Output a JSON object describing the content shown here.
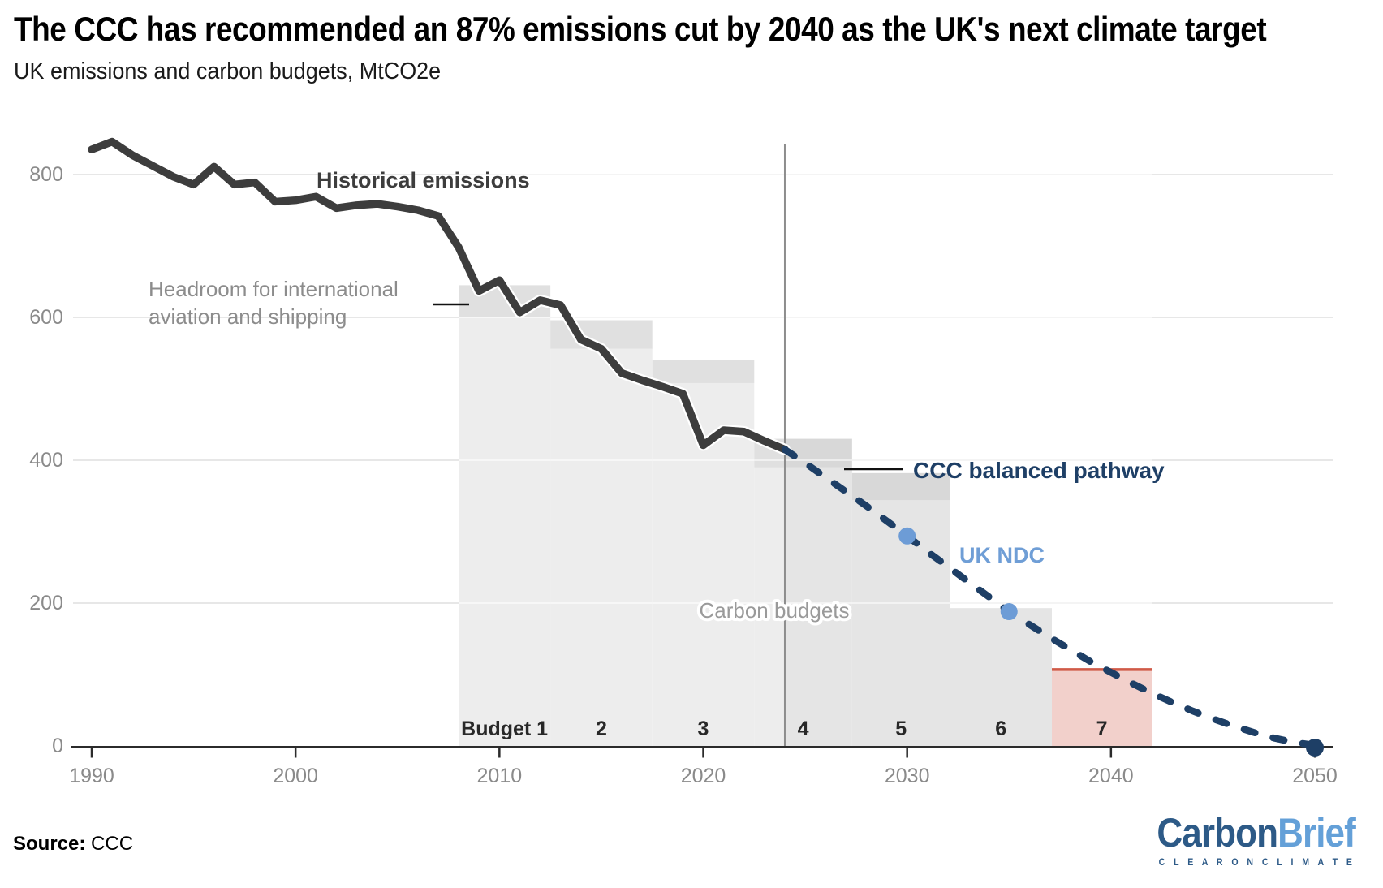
{
  "header": {
    "title": "The CCC has recommended an 87% emissions cut by 2040 as the UK's next climate target",
    "subtitle": "UK emissions and carbon budgets, MtCO2e"
  },
  "footer": {
    "source_label": "Source:",
    "source_value": "CCC",
    "logo": {
      "part1": "Carbon",
      "part2": "Brief",
      "tagline": "C L E A R   O N   C L I M A T E"
    }
  },
  "chart_data": {
    "type": "line",
    "title": "UK emissions and carbon budgets",
    "unit": "MtCO2e",
    "xlabel": "",
    "ylabel": "MtCO2e",
    "x_ticks": [
      1990,
      2000,
      2010,
      2020,
      2030,
      2040,
      2050
    ],
    "y_ticks": [
      0,
      200,
      400,
      600,
      800
    ],
    "x_domain": [
      1990,
      2050
    ],
    "y_domain": [
      0,
      860
    ],
    "grid": "horizontal",
    "now_line_year": 2024,
    "historical": {
      "label": "Historical emissions",
      "years": [
        1990,
        1991,
        1992,
        1993,
        1994,
        1995,
        1996,
        1997,
        1998,
        1999,
        2000,
        2001,
        2002,
        2003,
        2004,
        2005,
        2006,
        2007,
        2008,
        2009,
        2010,
        2011,
        2012,
        2013,
        2014,
        2015,
        2016,
        2017,
        2018,
        2019,
        2020,
        2021,
        2022,
        2023,
        2024
      ],
      "values": [
        835,
        846,
        827,
        812,
        797,
        786,
        811,
        786,
        789,
        762,
        764,
        769,
        753,
        757,
        759,
        755,
        750,
        742,
        698,
        637,
        652,
        607,
        624,
        617,
        569,
        556,
        522,
        512,
        503,
        493,
        421,
        442,
        440,
        427,
        415
      ]
    },
    "pathway": {
      "label": "CCC balanced pathway",
      "points": [
        [
          2024,
          415
        ],
        [
          2025,
          396
        ],
        [
          2026,
          376
        ],
        [
          2027,
          356
        ],
        [
          2028,
          336
        ],
        [
          2029,
          315
        ],
        [
          2030,
          294
        ],
        [
          2031,
          272
        ],
        [
          2032,
          251
        ],
        [
          2033,
          230
        ],
        [
          2034,
          209
        ],
        [
          2035,
          188
        ],
        [
          2036,
          170
        ],
        [
          2037,
          152
        ],
        [
          2038,
          135
        ],
        [
          2039,
          118
        ],
        [
          2040,
          103
        ],
        [
          2041,
          88
        ],
        [
          2042,
          74
        ],
        [
          2043,
          61
        ],
        [
          2044,
          49
        ],
        [
          2045,
          38
        ],
        [
          2046,
          28
        ],
        [
          2047,
          19
        ],
        [
          2048,
          11
        ],
        [
          2049,
          5
        ],
        [
          2050,
          1
        ]
      ]
    },
    "ndc": {
      "label": "UK NDC",
      "points": [
        [
          2030,
          294
        ],
        [
          2035,
          188
        ]
      ]
    },
    "net_zero_point": [
      2050,
      0
    ],
    "budgets": [
      {
        "label": "Budget 1",
        "start": 2008.0,
        "end": 2012.5,
        "cap": 645,
        "net": 601,
        "headroom": true,
        "era": "past"
      },
      {
        "label": "2",
        "start": 2012.5,
        "end": 2017.5,
        "cap": 596,
        "net": 556,
        "headroom": true,
        "era": "past"
      },
      {
        "label": "3",
        "start": 2017.5,
        "end": 2022.5,
        "cap": 540,
        "net": 508,
        "headroom": true,
        "era": "past"
      },
      {
        "label": "4",
        "start": 2022.5,
        "end": 2027.3,
        "cap": 430,
        "net": 390,
        "headroom": true,
        "era": "split"
      },
      {
        "label": "5",
        "start": 2027.3,
        "end": 2032.1,
        "cap": 382,
        "net": 344,
        "headroom": true,
        "era": "future"
      },
      {
        "label": "6",
        "start": 2032.1,
        "end": 2037.1,
        "cap": 193,
        "net": 193,
        "headroom": false,
        "era": "future"
      },
      {
        "label": "7",
        "start": 2037.1,
        "end": 2042.0,
        "cap": 107,
        "net": 107,
        "headroom": false,
        "era": "future",
        "highlight": true
      }
    ],
    "annotations": {
      "historical_label": "Historical emissions",
      "headroom_label_line1": "Headroom for international",
      "headroom_label_line2": "aviation and shipping",
      "pathway_label": "CCC balanced pathway",
      "ndc_label": "UK NDC",
      "budgets_label": "Carbon budgets"
    },
    "colors": {
      "historical_line": "#3d3d3d",
      "pathway_line": "#1e3f66",
      "pathway_label": "#1e3f66",
      "ndc_dot": "#6d9cd6",
      "ndc_label": "#6f9ed6",
      "budget_past_light": "#ededed",
      "budget_past_band": "#e0e0e0",
      "budget_future_light": "#e5e5e5",
      "budget_future_band": "#d8d8d8",
      "budget7_fill": "#f2d0cb",
      "budget7_line": "#d05a47",
      "gridline": "#e7e7e7",
      "axis": "#2b2b2b",
      "axis_text": "#8a8a8a",
      "now_line": "#8d8d8d",
      "headroom_text": "#8c8c8c",
      "budgets_text": "#9a9a9a",
      "budget_number_text": "#282828",
      "leader_line": "#111111"
    }
  }
}
